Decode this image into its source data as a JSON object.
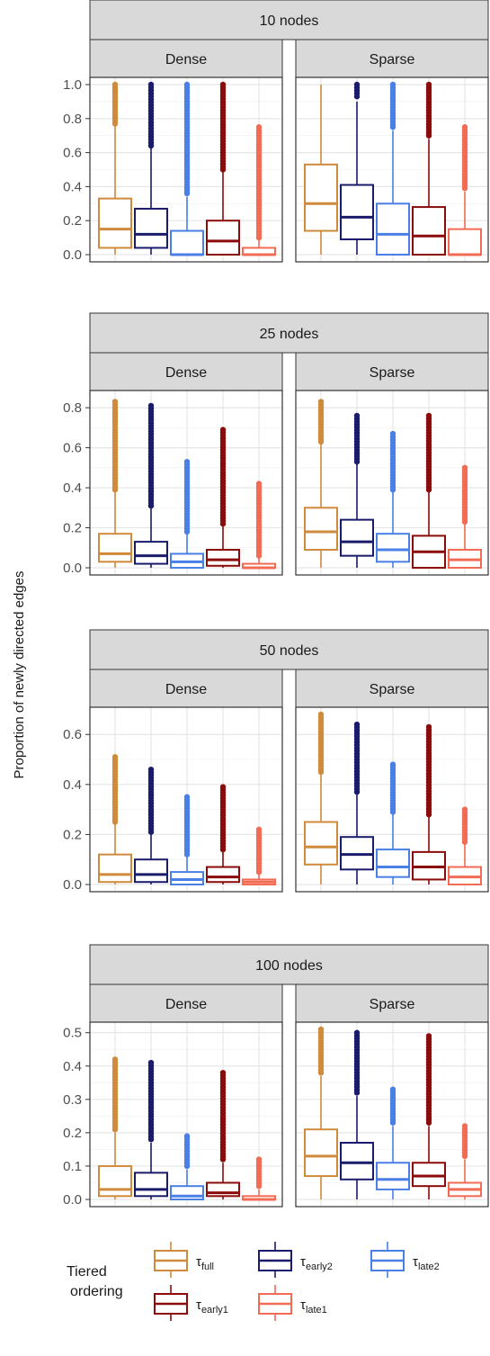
{
  "y_axis_label": "Proportion of newly directed edges",
  "legend": {
    "title_line1": "Tiered",
    "title_line2": "ordering",
    "items": [
      {
        "key": "full",
        "base": "τ",
        "sub": "full",
        "color": "#D08A3C"
      },
      {
        "key": "early2",
        "base": "τ",
        "sub": "early2",
        "color": "#1B1B6B"
      },
      {
        "key": "late2",
        "base": "τ",
        "sub": "late2",
        "color": "#4A7FE6"
      },
      {
        "key": "early1",
        "base": "τ",
        "sub": "early1",
        "color": "#8B0A0A"
      },
      {
        "key": "late1",
        "base": "τ",
        "sub": "late1",
        "color": "#F26B55"
      }
    ]
  },
  "chart_data": [
    {
      "type": "boxplot",
      "title": "10 nodes",
      "ylim": [
        0,
        1.0
      ],
      "yticks": [
        0.0,
        0.2,
        0.4,
        0.6,
        0.8,
        1.0
      ],
      "ytick_labels": [
        "0.0",
        "0.2",
        "0.4",
        "0.6",
        "0.8",
        "1.0"
      ],
      "facets": [
        {
          "label": "Dense",
          "boxes": [
            {
              "series": "full",
              "q1": 0.04,
              "median": 0.15,
              "q3": 0.33,
              "wlow": 0.0,
              "whigh": 0.76,
              "outlier_min": 0.77,
              "outlier_max": 1.0
            },
            {
              "series": "early2",
              "q1": 0.04,
              "median": 0.12,
              "q3": 0.27,
              "wlow": 0.0,
              "whigh": 0.63,
              "outlier_min": 0.64,
              "outlier_max": 1.0
            },
            {
              "series": "late2",
              "q1": 0.0,
              "median": 0.0,
              "q3": 0.14,
              "wlow": 0.0,
              "whigh": 0.34,
              "outlier_min": 0.36,
              "outlier_max": 1.0
            },
            {
              "series": "early1",
              "q1": 0.0,
              "median": 0.08,
              "q3": 0.2,
              "wlow": 0.0,
              "whigh": 0.49,
              "outlier_min": 0.5,
              "outlier_max": 1.0
            },
            {
              "series": "late1",
              "q1": 0.0,
              "median": 0.0,
              "q3": 0.04,
              "wlow": 0.0,
              "whigh": 0.09,
              "outlier_min": 0.1,
              "outlier_max": 0.75
            }
          ]
        },
        {
          "label": "Sparse",
          "boxes": [
            {
              "series": "full",
              "q1": 0.14,
              "median": 0.3,
              "q3": 0.53,
              "wlow": 0.0,
              "whigh": 1.0,
              "outlier_min": null,
              "outlier_max": null
            },
            {
              "series": "early2",
              "q1": 0.09,
              "median": 0.22,
              "q3": 0.41,
              "wlow": 0.0,
              "whigh": 0.9,
              "outlier_min": 0.93,
              "outlier_max": 1.0
            },
            {
              "series": "late2",
              "q1": 0.0,
              "median": 0.12,
              "q3": 0.3,
              "wlow": 0.0,
              "whigh": 0.73,
              "outlier_min": 0.75,
              "outlier_max": 1.0
            },
            {
              "series": "early1",
              "q1": 0.0,
              "median": 0.11,
              "q3": 0.28,
              "wlow": 0.0,
              "whigh": 0.68,
              "outlier_min": 0.7,
              "outlier_max": 1.0
            },
            {
              "series": "late1",
              "q1": 0.0,
              "median": 0.0,
              "q3": 0.15,
              "wlow": 0.0,
              "whigh": 0.37,
              "outlier_min": 0.39,
              "outlier_max": 0.75
            }
          ]
        }
      ]
    },
    {
      "type": "boxplot",
      "title": "25 nodes",
      "ylim": [
        0,
        0.85
      ],
      "yticks": [
        0.0,
        0.2,
        0.4,
        0.6,
        0.8
      ],
      "ytick_labels": [
        "0.0",
        "0.2",
        "0.4",
        "0.6",
        "0.8"
      ],
      "facets": [
        {
          "label": "Dense",
          "boxes": [
            {
              "series": "full",
              "q1": 0.03,
              "median": 0.07,
              "q3": 0.17,
              "wlow": 0.0,
              "whigh": 0.38,
              "outlier_min": 0.39,
              "outlier_max": 0.83
            },
            {
              "series": "early2",
              "q1": 0.02,
              "median": 0.06,
              "q3": 0.13,
              "wlow": 0.0,
              "whigh": 0.3,
              "outlier_min": 0.31,
              "outlier_max": 0.81
            },
            {
              "series": "late2",
              "q1": 0.0,
              "median": 0.03,
              "q3": 0.07,
              "wlow": 0.0,
              "whigh": 0.17,
              "outlier_min": 0.18,
              "outlier_max": 0.53
            },
            {
              "series": "early1",
              "q1": 0.01,
              "median": 0.04,
              "q3": 0.09,
              "wlow": 0.0,
              "whigh": 0.21,
              "outlier_min": 0.22,
              "outlier_max": 0.69
            },
            {
              "series": "late1",
              "q1": 0.0,
              "median": 0.0,
              "q3": 0.02,
              "wlow": 0.0,
              "whigh": 0.05,
              "outlier_min": 0.06,
              "outlier_max": 0.42
            }
          ]
        },
        {
          "label": "Sparse",
          "boxes": [
            {
              "series": "full",
              "q1": 0.09,
              "median": 0.18,
              "q3": 0.3,
              "wlow": 0.0,
              "whigh": 0.62,
              "outlier_min": 0.63,
              "outlier_max": 0.83
            },
            {
              "series": "early2",
              "q1": 0.06,
              "median": 0.13,
              "q3": 0.24,
              "wlow": 0.0,
              "whigh": 0.52,
              "outlier_min": 0.53,
              "outlier_max": 0.76
            },
            {
              "series": "late2",
              "q1": 0.03,
              "median": 0.09,
              "q3": 0.17,
              "wlow": 0.0,
              "whigh": 0.38,
              "outlier_min": 0.39,
              "outlier_max": 0.67
            },
            {
              "series": "early1",
              "q1": 0.0,
              "median": 0.08,
              "q3": 0.16,
              "wlow": 0.0,
              "whigh": 0.38,
              "outlier_min": 0.39,
              "outlier_max": 0.76
            },
            {
              "series": "late1",
              "q1": 0.0,
              "median": 0.04,
              "q3": 0.09,
              "wlow": 0.0,
              "whigh": 0.22,
              "outlier_min": 0.23,
              "outlier_max": 0.5
            }
          ]
        }
      ]
    },
    {
      "type": "boxplot",
      "title": "50 nodes",
      "ylim": [
        0,
        0.68
      ],
      "yticks": [
        0.0,
        0.2,
        0.4,
        0.6
      ],
      "ytick_labels": [
        "0.0",
        "0.2",
        "0.4",
        "0.6"
      ],
      "facets": [
        {
          "label": "Dense",
          "boxes": [
            {
              "series": "full",
              "q1": 0.01,
              "median": 0.04,
              "q3": 0.12,
              "wlow": 0.0,
              "whigh": 0.24,
              "outlier_min": 0.25,
              "outlier_max": 0.51
            },
            {
              "series": "early2",
              "q1": 0.01,
              "median": 0.04,
              "q3": 0.1,
              "wlow": 0.0,
              "whigh": 0.2,
              "outlier_min": 0.21,
              "outlier_max": 0.46
            },
            {
              "series": "late2",
              "q1": 0.0,
              "median": 0.02,
              "q3": 0.05,
              "wlow": 0.0,
              "whigh": 0.11,
              "outlier_min": 0.12,
              "outlier_max": 0.35
            },
            {
              "series": "early1",
              "q1": 0.01,
              "median": 0.03,
              "q3": 0.07,
              "wlow": 0.0,
              "whigh": 0.13,
              "outlier_min": 0.14,
              "outlier_max": 0.39
            },
            {
              "series": "late1",
              "q1": 0.0,
              "median": 0.01,
              "q3": 0.02,
              "wlow": 0.0,
              "whigh": 0.04,
              "outlier_min": 0.05,
              "outlier_max": 0.22
            }
          ]
        },
        {
          "label": "Sparse",
          "boxes": [
            {
              "series": "full",
              "q1": 0.08,
              "median": 0.15,
              "q3": 0.25,
              "wlow": 0.0,
              "whigh": 0.44,
              "outlier_min": 0.45,
              "outlier_max": 0.68
            },
            {
              "series": "early2",
              "q1": 0.06,
              "median": 0.12,
              "q3": 0.19,
              "wlow": 0.0,
              "whigh": 0.36,
              "outlier_min": 0.37,
              "outlier_max": 0.64
            },
            {
              "series": "late2",
              "q1": 0.03,
              "median": 0.07,
              "q3": 0.14,
              "wlow": 0.0,
              "whigh": 0.28,
              "outlier_min": 0.29,
              "outlier_max": 0.48
            },
            {
              "series": "early1",
              "q1": 0.02,
              "median": 0.07,
              "q3": 0.13,
              "wlow": 0.0,
              "whigh": 0.27,
              "outlier_min": 0.28,
              "outlier_max": 0.63
            },
            {
              "series": "late1",
              "q1": 0.0,
              "median": 0.03,
              "q3": 0.07,
              "wlow": 0.0,
              "whigh": 0.16,
              "outlier_min": 0.17,
              "outlier_max": 0.3
            }
          ]
        }
      ]
    },
    {
      "type": "boxplot",
      "title": "100 nodes",
      "ylim": [
        0,
        0.51
      ],
      "yticks": [
        0.0,
        0.1,
        0.2,
        0.3,
        0.4,
        0.5
      ],
      "ytick_labels": [
        "0.0",
        "0.1",
        "0.2",
        "0.3",
        "0.4",
        "0.5"
      ],
      "facets": [
        {
          "label": "Dense",
          "boxes": [
            {
              "series": "full",
              "q1": 0.01,
              "median": 0.03,
              "q3": 0.1,
              "wlow": 0.0,
              "whigh": 0.2,
              "outlier_min": 0.21,
              "outlier_max": 0.42
            },
            {
              "series": "early2",
              "q1": 0.01,
              "median": 0.03,
              "q3": 0.08,
              "wlow": 0.0,
              "whigh": 0.17,
              "outlier_min": 0.18,
              "outlier_max": 0.41
            },
            {
              "series": "late2",
              "q1": 0.0,
              "median": 0.01,
              "q3": 0.04,
              "wlow": 0.0,
              "whigh": 0.09,
              "outlier_min": 0.1,
              "outlier_max": 0.19
            },
            {
              "series": "early1",
              "q1": 0.01,
              "median": 0.02,
              "q3": 0.05,
              "wlow": 0.0,
              "whigh": 0.11,
              "outlier_min": 0.12,
              "outlier_max": 0.38
            },
            {
              "series": "late1",
              "q1": 0.0,
              "median": 0.0,
              "q3": 0.01,
              "wlow": 0.0,
              "whigh": 0.03,
              "outlier_min": 0.04,
              "outlier_max": 0.12
            }
          ]
        },
        {
          "label": "Sparse",
          "boxes": [
            {
              "series": "full",
              "q1": 0.07,
              "median": 0.13,
              "q3": 0.21,
              "wlow": 0.0,
              "whigh": 0.37,
              "outlier_min": 0.38,
              "outlier_max": 0.51
            },
            {
              "series": "early2",
              "q1": 0.06,
              "median": 0.11,
              "q3": 0.17,
              "wlow": 0.0,
              "whigh": 0.31,
              "outlier_min": 0.32,
              "outlier_max": 0.5
            },
            {
              "series": "late2",
              "q1": 0.03,
              "median": 0.06,
              "q3": 0.11,
              "wlow": 0.0,
              "whigh": 0.22,
              "outlier_min": 0.23,
              "outlier_max": 0.33
            },
            {
              "series": "early1",
              "q1": 0.04,
              "median": 0.07,
              "q3": 0.11,
              "wlow": 0.0,
              "whigh": 0.22,
              "outlier_min": 0.23,
              "outlier_max": 0.49
            },
            {
              "series": "late1",
              "q1": 0.01,
              "median": 0.03,
              "q3": 0.05,
              "wlow": 0.0,
              "whigh": 0.12,
              "outlier_min": 0.13,
              "outlier_max": 0.22
            }
          ]
        }
      ]
    }
  ]
}
